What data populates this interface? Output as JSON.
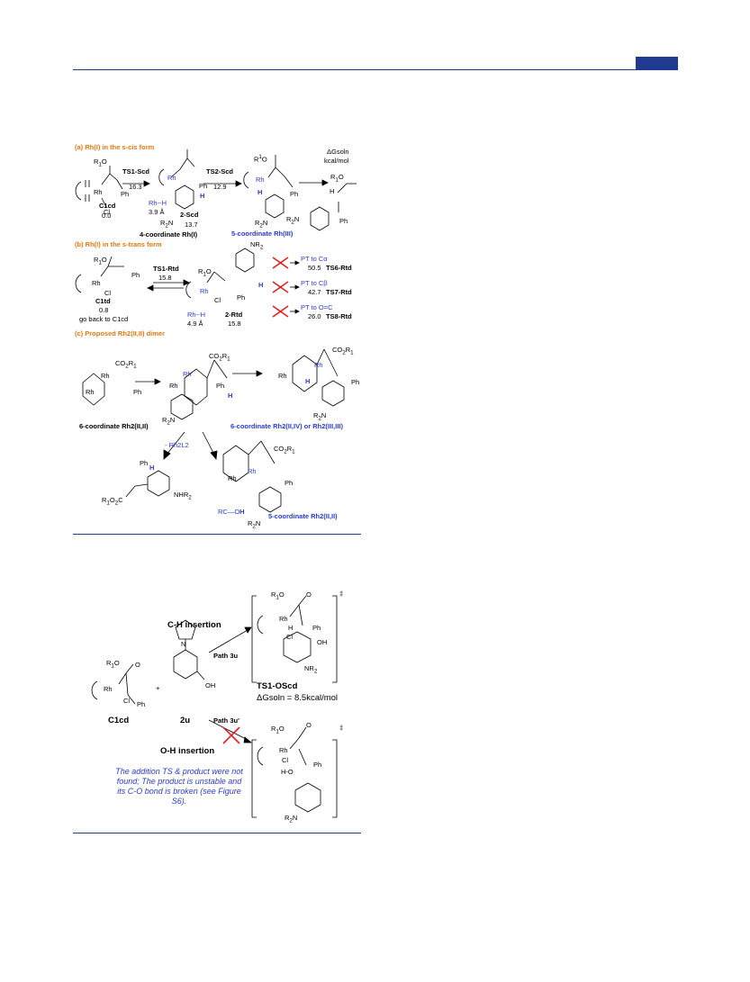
{
  "panel_a": {
    "title": "(a) Rh(I) in the s-cis form",
    "units": [
      "ΔGsoln",
      "kcal/mol"
    ],
    "c1": {
      "name": "C1cd",
      "energy": "0.0"
    },
    "ts1": {
      "name": "TS1-Scd",
      "energy": "16.3"
    },
    "ts2": {
      "name": "TS2-Scd",
      "energy": "12.9"
    },
    "s2": {
      "name": "2-Scd",
      "energy": "13.7"
    },
    "rhh": {
      "label": "Rh--H",
      "dist": "3.9 Å"
    },
    "four_coord": "4-coordinate Rh(I)",
    "five_coord": "5-coordinate Rh(III)"
  },
  "panel_b": {
    "title": "(b) Rh(I) in the s-trans form",
    "c1": {
      "name": "C1td",
      "energy": "0.8",
      "note": "go back to C1cd"
    },
    "ts1": {
      "name": "TS1-Rtd",
      "energy": "15.8"
    },
    "r2": {
      "name": "2-Rtd",
      "energy": "15.8"
    },
    "rhh": {
      "label": "Rh--H",
      "dist": "4.9 Å"
    },
    "pt": [
      {
        "label": "PT to Cα",
        "energy": "50.5",
        "ts": "TS6-Rtd"
      },
      {
        "label": "PT to Cβ",
        "energy": "42.7",
        "ts": "TS7-Rtd"
      },
      {
        "label": "PT to O=C",
        "energy": "26.0",
        "ts": "TS8-Rtd"
      }
    ]
  },
  "panel_c": {
    "title": "(c) Proposed Rh2(II,II) dimer",
    "six_coord": "6-coordinate Rh2(II,II)",
    "six_coord_b": "6-coordinate Rh2(II,IV) or Rh2(III,III)",
    "five_coord": "5-coordinate Rh2(II,II)",
    "minus": "- Rh2L2"
  },
  "scheme2": {
    "c1": "C1cd",
    "amine": "2u",
    "ch": "C-H insertion",
    "oh": "O-H insertion",
    "path_a": "Path 3u",
    "path_b": "Path 3u'",
    "ts": "TS1-OScd",
    "dg": "ΔGsoln = 8.5kcal/mol",
    "note": "The addition TS & product were not found; The product is unstable and its C-O bond is broken (see Figure S6)."
  },
  "colors": {
    "accent": "#1f3a8f",
    "orange": "#e07a10",
    "blue": "#2a3cc8",
    "red": "#e02020"
  }
}
